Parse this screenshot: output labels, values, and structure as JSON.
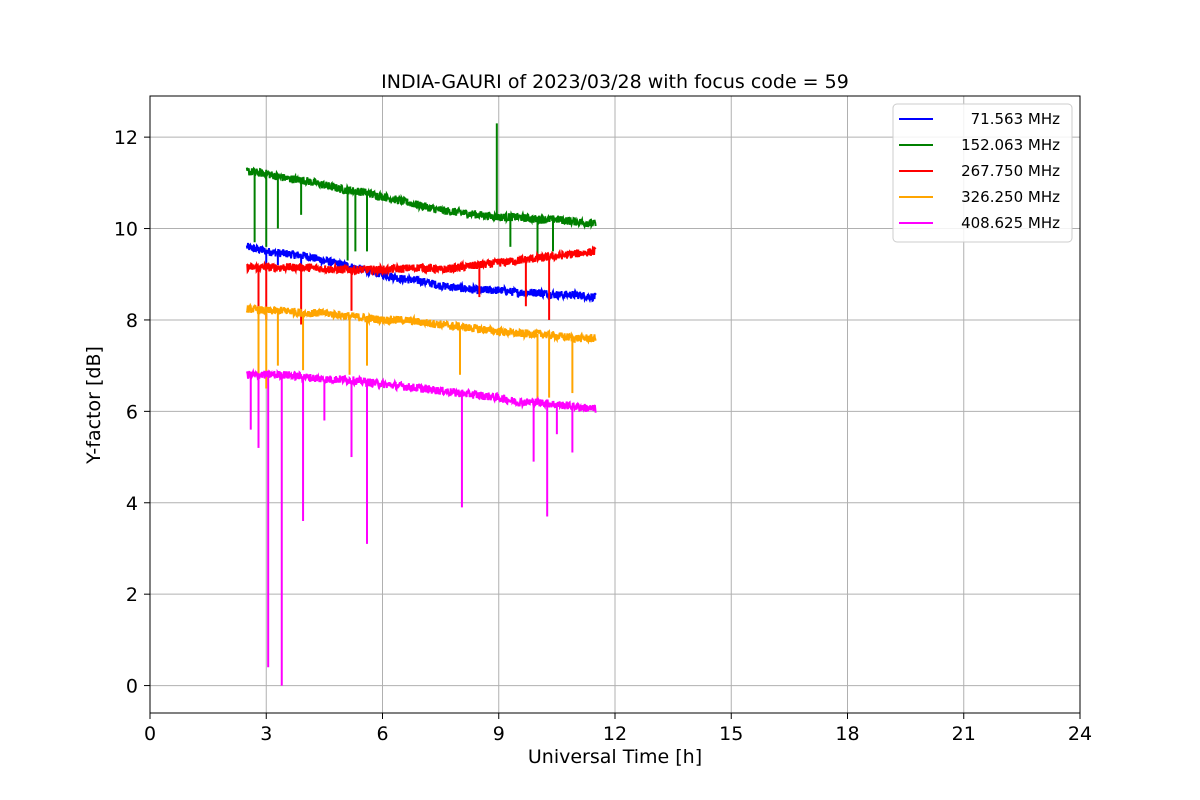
{
  "chart_data": {
    "type": "line",
    "title": "INDIA-GAURI of 2023/03/28 with focus code = 59",
    "xlabel": "Universal Time [h]",
    "ylabel": "Y-factor [dB]",
    "xlim": [
      0,
      24
    ],
    "ylim": [
      -0.6,
      12.9
    ],
    "xticks": [
      0,
      3,
      6,
      9,
      12,
      15,
      18,
      21,
      24
    ],
    "yticks": [
      0,
      2,
      4,
      6,
      8,
      10,
      12
    ],
    "grid": true,
    "legend_position": "top-right",
    "series": [
      {
        "name": "71.563 MHz",
        "color": "#0000ff",
        "x": [
          2.5,
          3.0,
          3.5,
          4.0,
          4.5,
          5.0,
          5.5,
          6.0,
          6.5,
          7.0,
          7.5,
          8.0,
          8.5,
          9.0,
          9.5,
          10.0,
          10.5,
          11.0,
          11.5
        ],
        "values": [
          9.6,
          9.5,
          9.45,
          9.4,
          9.3,
          9.2,
          9.1,
          9.0,
          8.9,
          8.85,
          8.75,
          8.7,
          8.65,
          8.65,
          8.6,
          8.6,
          8.55,
          8.55,
          8.5
        ],
        "spikes": [
          [
            3.0,
            9.1
          ],
          [
            3.3,
            9.2
          ],
          [
            3.9,
            9.2
          ],
          [
            5.2,
            9.0
          ]
        ]
      },
      {
        "name": "152.063 MHz",
        "color": "#008000",
        "x": [
          2.5,
          3.0,
          3.5,
          4.0,
          4.5,
          5.0,
          5.5,
          6.0,
          6.5,
          7.0,
          7.5,
          8.0,
          8.5,
          9.0,
          9.5,
          10.0,
          10.5,
          11.0,
          11.5
        ],
        "values": [
          11.25,
          11.2,
          11.1,
          11.05,
          10.95,
          10.85,
          10.8,
          10.7,
          10.6,
          10.5,
          10.4,
          10.35,
          10.3,
          10.25,
          10.25,
          10.2,
          10.2,
          10.15,
          10.1
        ],
        "spikes": [
          [
            2.7,
            9.7
          ],
          [
            3.0,
            9.6
          ],
          [
            3.3,
            10.0
          ],
          [
            3.9,
            10.3
          ],
          [
            5.1,
            9.3
          ],
          [
            5.3,
            9.5
          ],
          [
            5.6,
            9.5
          ],
          [
            8.95,
            12.3
          ],
          [
            9.3,
            9.6
          ],
          [
            10.0,
            9.4
          ],
          [
            10.4,
            9.5
          ]
        ]
      },
      {
        "name": "267.750 MHz",
        "color": "#ff0000",
        "x": [
          2.5,
          3.0,
          3.5,
          4.0,
          4.5,
          5.0,
          5.5,
          6.0,
          6.5,
          7.0,
          7.5,
          8.0,
          8.5,
          9.0,
          9.5,
          10.0,
          10.5,
          11.0,
          11.5
        ],
        "values": [
          9.15,
          9.15,
          9.15,
          9.15,
          9.12,
          9.1,
          9.1,
          9.1,
          9.12,
          9.15,
          9.1,
          9.15,
          9.2,
          9.25,
          9.3,
          9.35,
          9.4,
          9.45,
          9.5
        ],
        "spikes": [
          [
            2.8,
            8.2
          ],
          [
            3.0,
            8.0
          ],
          [
            3.9,
            7.9
          ],
          [
            5.2,
            8.2
          ],
          [
            8.5,
            8.5
          ],
          [
            9.7,
            8.3
          ],
          [
            10.3,
            8.0
          ]
        ]
      },
      {
        "name": "326.250 MHz",
        "color": "#ffa500",
        "x": [
          2.5,
          3.0,
          3.5,
          4.0,
          4.5,
          5.0,
          5.5,
          6.0,
          6.5,
          7.0,
          7.5,
          8.0,
          8.5,
          9.0,
          9.5,
          10.0,
          10.5,
          11.0,
          11.5
        ],
        "values": [
          8.25,
          8.2,
          8.2,
          8.15,
          8.15,
          8.1,
          8.05,
          8.0,
          8.0,
          7.95,
          7.9,
          7.85,
          7.8,
          7.75,
          7.7,
          7.7,
          7.65,
          7.6,
          7.6
        ],
        "spikes": [
          [
            2.8,
            6.8
          ],
          [
            3.0,
            6.5
          ],
          [
            3.3,
            7.0
          ],
          [
            3.95,
            6.9
          ],
          [
            5.15,
            6.8
          ],
          [
            5.6,
            7.0
          ],
          [
            8.0,
            6.8
          ],
          [
            10.0,
            6.2
          ],
          [
            10.3,
            6.3
          ],
          [
            10.9,
            6.4
          ]
        ]
      },
      {
        "name": "408.625 MHz",
        "color": "#ff00ff",
        "x": [
          2.5,
          3.0,
          3.5,
          4.0,
          4.5,
          5.0,
          5.5,
          6.0,
          6.5,
          7.0,
          7.5,
          8.0,
          8.5,
          9.0,
          9.5,
          10.0,
          10.5,
          11.0,
          11.5
        ],
        "values": [
          6.8,
          6.8,
          6.8,
          6.75,
          6.7,
          6.7,
          6.65,
          6.6,
          6.55,
          6.5,
          6.45,
          6.4,
          6.35,
          6.3,
          6.2,
          6.2,
          6.15,
          6.1,
          6.05
        ],
        "spikes": [
          [
            2.6,
            5.6
          ],
          [
            2.8,
            5.2
          ],
          [
            3.05,
            0.4
          ],
          [
            3.4,
            0.0
          ],
          [
            3.95,
            3.6
          ],
          [
            4.5,
            5.8
          ],
          [
            5.2,
            5.0
          ],
          [
            5.6,
            3.1
          ],
          [
            8.05,
            3.9
          ],
          [
            9.9,
            4.9
          ],
          [
            10.25,
            3.7
          ],
          [
            10.5,
            5.5
          ],
          [
            10.9,
            5.1
          ]
        ]
      }
    ]
  }
}
